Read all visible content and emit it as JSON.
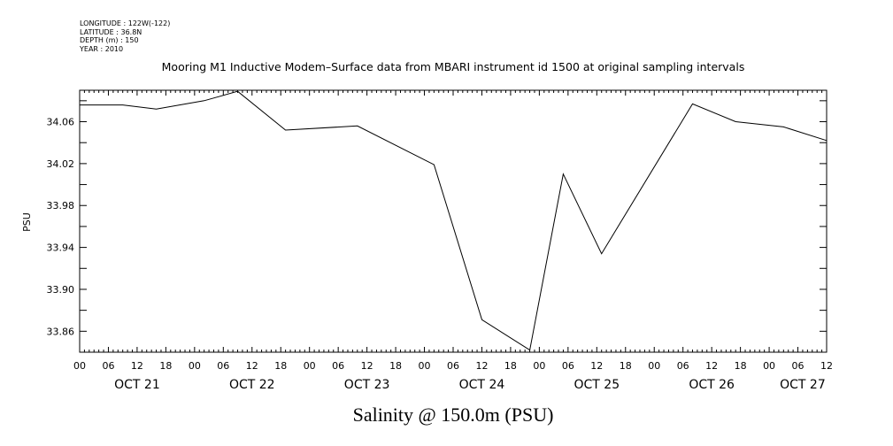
{
  "meta": {
    "longitude": "LONGITUDE : 122W(-122)",
    "latitude": "LATITUDE : 36.8N",
    "depth": "DEPTH (m) : 150",
    "year": "YEAR : 2010"
  },
  "chart_data": {
    "type": "line",
    "title": "Mooring M1 Inductive Modem–Surface data from MBARI instrument id 1500 at original sampling intervals",
    "ylabel": "PSU",
    "xlabel": "Salinity @ 150.0m (PSU)",
    "x_unit": "hours from 2010-10-21 00:00",
    "xlim": [
      0,
      156
    ],
    "ylim": [
      33.84,
      34.09
    ],
    "y_ticks": [
      33.86,
      33.9,
      33.94,
      33.98,
      34.02,
      34.06
    ],
    "y_tick_labels": [
      "33.86",
      "33.90",
      "33.94",
      "33.98",
      "34.02",
      "34.06"
    ],
    "x_hour_ticks": [
      0,
      6,
      12,
      18,
      24,
      30,
      36,
      42,
      48,
      54,
      60,
      66,
      72,
      78,
      84,
      90,
      96,
      102,
      108,
      114,
      120,
      126,
      132,
      138,
      144,
      150,
      156
    ],
    "x_hour_labels": [
      "00",
      "06",
      "12",
      "18",
      "00",
      "06",
      "12",
      "18",
      "00",
      "06",
      "12",
      "18",
      "00",
      "06",
      "12",
      "18",
      "00",
      "06",
      "12",
      "18",
      "00",
      "06",
      "12",
      "18",
      "00",
      "06",
      "12"
    ],
    "day_labels": [
      {
        "at": 12,
        "label": "OCT 21"
      },
      {
        "at": 36,
        "label": "OCT 22"
      },
      {
        "at": 60,
        "label": "OCT 23"
      },
      {
        "at": 84,
        "label": "OCT 24"
      },
      {
        "at": 108,
        "label": "OCT 25"
      },
      {
        "at": 132,
        "label": "OCT 26"
      },
      {
        "at": 151,
        "label": "OCT 27"
      }
    ],
    "x": [
      0,
      9,
      16,
      26,
      33,
      43,
      58,
      74,
      84,
      94,
      101,
      109,
      128,
      137,
      147,
      156
    ],
    "y": [
      34.076,
      34.076,
      34.072,
      34.08,
      34.089,
      34.052,
      34.056,
      34.019,
      33.871,
      33.842,
      34.01,
      33.934,
      34.077,
      34.06,
      34.055,
      34.042
    ],
    "line_color": "#000000"
  }
}
